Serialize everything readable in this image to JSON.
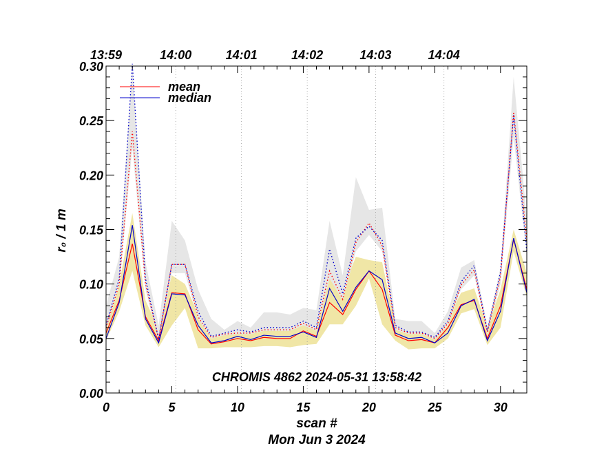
{
  "chart_data": {
    "type": "line",
    "xlabel": "scan #",
    "ylabel": "r₀ / 1 m",
    "date_label": "Mon Jun  3 2024",
    "annotation": "CHROMIS 4862 2024-05-31 13:58:42",
    "xlim": [
      0,
      32
    ],
    "ylim": [
      0,
      0.3
    ],
    "x_ticks": [
      0,
      5,
      10,
      15,
      20,
      25,
      30
    ],
    "x_tick_labels": [
      "0",
      "5",
      "10",
      "15",
      "20",
      "25",
      "30"
    ],
    "y_ticks": [
      0,
      0.05,
      0.1,
      0.15,
      0.2,
      0.25,
      0.3
    ],
    "y_tick_labels": [
      "0.00",
      "0.05",
      "0.10",
      "0.15",
      "0.20",
      "0.25",
      "0.30"
    ],
    "top_axis": {
      "tick_positions": [
        0,
        5.3,
        10.3,
        15.3,
        20.5,
        25.7
      ],
      "tick_labels": [
        "13:59",
        "14:00",
        "14:01",
        "14:02",
        "14:03",
        "14:04"
      ]
    },
    "legend_placement": "top-left",
    "x": [
      0,
      1,
      2,
      3,
      4,
      5,
      6,
      7,
      8,
      9,
      10,
      11,
      12,
      13,
      14,
      15,
      16,
      17,
      18,
      19,
      20,
      21,
      22,
      23,
      24,
      25,
      26,
      27,
      28,
      29,
      30,
      31,
      32
    ],
    "series": [
      {
        "name": "mean",
        "color": "#ff0000",
        "style": "solid",
        "values": [
          0.055,
          0.085,
          0.137,
          0.07,
          0.048,
          0.092,
          0.091,
          0.058,
          0.045,
          0.047,
          0.05,
          0.048,
          0.051,
          0.05,
          0.05,
          0.057,
          0.052,
          0.083,
          0.072,
          0.095,
          0.112,
          0.095,
          0.053,
          0.048,
          0.049,
          0.046,
          0.06,
          0.081,
          0.085,
          0.05,
          0.08,
          0.141,
          0.095
        ]
      },
      {
        "name": "median",
        "color": "#0000cc",
        "style": "solid",
        "values": [
          0.05,
          0.083,
          0.154,
          0.068,
          0.046,
          0.091,
          0.09,
          0.062,
          0.046,
          0.048,
          0.052,
          0.049,
          0.053,
          0.052,
          0.052,
          0.056,
          0.051,
          0.096,
          0.075,
          0.097,
          0.112,
          0.104,
          0.055,
          0.05,
          0.051,
          0.046,
          0.055,
          0.08,
          0.086,
          0.048,
          0.075,
          0.142,
          0.092
        ]
      },
      {
        "name": "mean_dotted",
        "color": "#ff0000",
        "style": "dotted",
        "values": [
          0.06,
          0.1,
          0.24,
          0.1,
          0.05,
          0.118,
          0.118,
          0.07,
          0.051,
          0.054,
          0.055,
          0.055,
          0.058,
          0.058,
          0.058,
          0.064,
          0.058,
          0.112,
          0.086,
          0.138,
          0.156,
          0.135,
          0.06,
          0.055,
          0.055,
          0.05,
          0.064,
          0.099,
          0.113,
          0.056,
          0.107,
          0.258,
          0.14
        ]
      },
      {
        "name": "median_dotted",
        "color": "#0000cc",
        "style": "dotted",
        "values": [
          0.062,
          0.105,
          0.302,
          0.105,
          0.049,
          0.118,
          0.118,
          0.075,
          0.052,
          0.055,
          0.058,
          0.056,
          0.06,
          0.06,
          0.06,
          0.066,
          0.06,
          0.132,
          0.091,
          0.142,
          0.153,
          0.14,
          0.062,
          0.056,
          0.056,
          0.051,
          0.066,
          0.102,
          0.117,
          0.057,
          0.111,
          0.255,
          0.13
        ]
      }
    ],
    "bands": [
      {
        "name": "yellow",
        "color": "#f0e6a6",
        "upper": [
          0.065,
          0.1,
          0.165,
          0.085,
          0.058,
          0.108,
          0.1,
          0.072,
          0.056,
          0.056,
          0.058,
          0.058,
          0.062,
          0.062,
          0.06,
          0.068,
          0.062,
          0.105,
          0.095,
          0.125,
          0.122,
          0.12,
          0.062,
          0.06,
          0.06,
          0.055,
          0.068,
          0.092,
          0.096,
          0.06,
          0.095,
          0.15,
          0.11
        ],
        "lower": [
          0.048,
          0.075,
          0.112,
          0.062,
          0.042,
          0.062,
          0.078,
          0.041,
          0.041,
          0.042,
          0.042,
          0.042,
          0.043,
          0.043,
          0.042,
          0.044,
          0.045,
          0.063,
          0.063,
          0.08,
          0.105,
          0.063,
          0.048,
          0.04,
          0.041,
          0.041,
          0.05,
          0.073,
          0.077,
          0.044,
          0.06,
          0.13,
          0.088
        ]
      },
      {
        "name": "gray",
        "color": "#e6e6e6",
        "upper": [
          0.08,
          0.125,
          0.3,
          0.12,
          0.062,
          0.158,
          0.14,
          0.095,
          0.068,
          0.058,
          0.066,
          0.06,
          0.074,
          0.074,
          0.072,
          0.078,
          0.076,
          0.158,
          0.108,
          0.198,
          0.168,
          0.17,
          0.068,
          0.066,
          0.066,
          0.055,
          0.075,
          0.115,
          0.122,
          0.062,
          0.115,
          0.29,
          0.16
        ],
        "lower": [
          0.058,
          0.098,
          0.225,
          0.095,
          0.048,
          0.11,
          0.11,
          0.068,
          0.05,
          0.053,
          0.054,
          0.054,
          0.057,
          0.057,
          0.057,
          0.062,
          0.057,
          0.105,
          0.085,
          0.13,
          0.145,
          0.13,
          0.058,
          0.054,
          0.054,
          0.049,
          0.062,
          0.095,
          0.108,
          0.054,
          0.1,
          0.235,
          0.125
        ]
      }
    ]
  }
}
